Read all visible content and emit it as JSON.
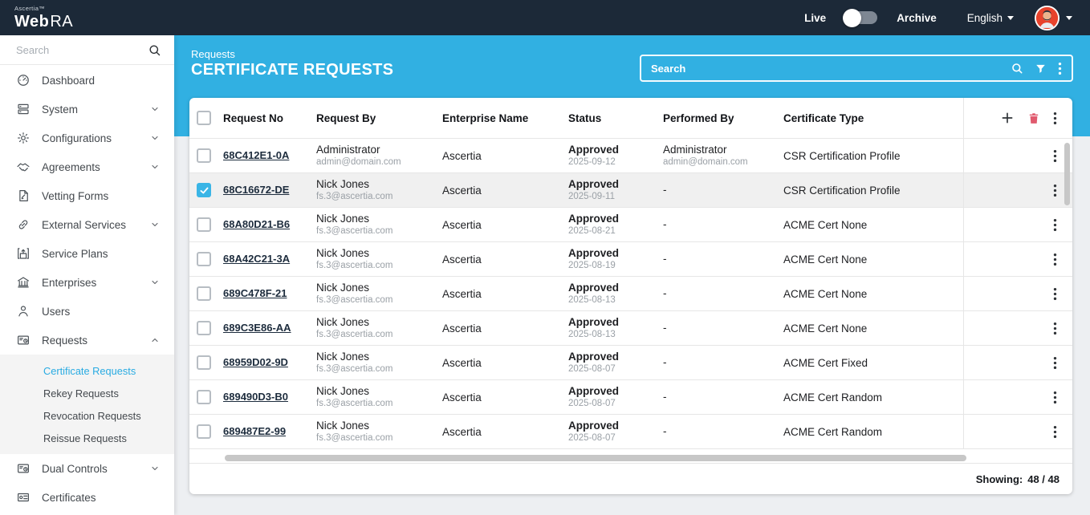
{
  "brand": {
    "company": "Ascertia",
    "trademark": "™",
    "product_primary": "Web",
    "product_secondary": "RA"
  },
  "topbar": {
    "live_label": "Live",
    "archive_label": "Archive",
    "language_label": "English"
  },
  "sidebar": {
    "search_placeholder": "Search",
    "items": [
      {
        "label": "Dashboard",
        "icon": "dashboard-icon"
      },
      {
        "label": "System",
        "icon": "system-icon",
        "chevron": "down"
      },
      {
        "label": "Configurations",
        "icon": "configurations-icon",
        "chevron": "down"
      },
      {
        "label": "Agreements",
        "icon": "agreements-icon",
        "chevron": "down"
      },
      {
        "label": "Vetting Forms",
        "icon": "vetting-forms-icon"
      },
      {
        "label": "External Services",
        "icon": "external-services-icon",
        "chevron": "down"
      },
      {
        "label": "Service Plans",
        "icon": "service-plans-icon"
      },
      {
        "label": "Enterprises",
        "icon": "enterprises-icon",
        "chevron": "down"
      },
      {
        "label": "Users",
        "icon": "users-icon"
      },
      {
        "label": "Requests",
        "icon": "requests-icon",
        "chevron": "up",
        "submenu": [
          {
            "label": "Certificate Requests",
            "active": true
          },
          {
            "label": "Rekey Requests",
            "active": false
          },
          {
            "label": "Revocation Requests",
            "active": false
          },
          {
            "label": "Reissue Requests",
            "active": false
          }
        ]
      },
      {
        "label": "Dual Controls",
        "icon": "dual-controls-icon",
        "chevron": "down"
      },
      {
        "label": "Certificates",
        "icon": "certificates-icon"
      },
      {
        "label": "",
        "icon": "card-icon"
      }
    ]
  },
  "page_header": {
    "breadcrumb": "Requests",
    "title": "CERTIFICATE REQUESTS",
    "search_placeholder": "Search"
  },
  "table": {
    "columns": [
      "Request No",
      "Request By",
      "Enterprise Name",
      "Status",
      "Performed By",
      "Certificate Type"
    ],
    "rows": [
      {
        "request_no": "68C412E1-0A",
        "request_by": {
          "name": "Administrator",
          "email": "admin@domain.com"
        },
        "enterprise": "Ascertia",
        "status": "Approved",
        "status_date": "2025-09-12",
        "performed_by": {
          "name": "Administrator",
          "email": "admin@domain.com"
        },
        "certificate_type": "CSR Certification Profile",
        "checked": false
      },
      {
        "request_no": "68C16672-DE",
        "request_by": {
          "name": "Nick Jones",
          "email": "fs.3@ascertia.com"
        },
        "enterprise": "Ascertia",
        "status": "Approved",
        "status_date": "2025-09-11",
        "performed_by": {
          "name": "-",
          "email": ""
        },
        "certificate_type": "CSR Certification Profile",
        "checked": true
      },
      {
        "request_no": "68A80D21-B6",
        "request_by": {
          "name": "Nick Jones",
          "email": "fs.3@ascertia.com"
        },
        "enterprise": "Ascertia",
        "status": "Approved",
        "status_date": "2025-08-21",
        "performed_by": {
          "name": "-",
          "email": ""
        },
        "certificate_type": "ACME Cert None",
        "checked": false
      },
      {
        "request_no": "68A42C21-3A",
        "request_by": {
          "name": "Nick Jones",
          "email": "fs.3@ascertia.com"
        },
        "enterprise": "Ascertia",
        "status": "Approved",
        "status_date": "2025-08-19",
        "performed_by": {
          "name": "-",
          "email": ""
        },
        "certificate_type": "ACME Cert None",
        "checked": false
      },
      {
        "request_no": "689C478F-21",
        "request_by": {
          "name": "Nick Jones",
          "email": "fs.3@ascertia.com"
        },
        "enterprise": "Ascertia",
        "status": "Approved",
        "status_date": "2025-08-13",
        "performed_by": {
          "name": "-",
          "email": ""
        },
        "certificate_type": "ACME Cert None",
        "checked": false
      },
      {
        "request_no": "689C3E86-AA",
        "request_by": {
          "name": "Nick Jones",
          "email": "fs.3@ascertia.com"
        },
        "enterprise": "Ascertia",
        "status": "Approved",
        "status_date": "2025-08-13",
        "performed_by": {
          "name": "-",
          "email": ""
        },
        "certificate_type": "ACME Cert None",
        "checked": false
      },
      {
        "request_no": "68959D02-9D",
        "request_by": {
          "name": "Nick Jones",
          "email": "fs.3@ascertia.com"
        },
        "enterprise": "Ascertia",
        "status": "Approved",
        "status_date": "2025-08-07",
        "performed_by": {
          "name": "-",
          "email": ""
        },
        "certificate_type": "ACME Cert Fixed",
        "checked": false
      },
      {
        "request_no": "689490D3-B0",
        "request_by": {
          "name": "Nick Jones",
          "email": "fs.3@ascertia.com"
        },
        "enterprise": "Ascertia",
        "status": "Approved",
        "status_date": "2025-08-07",
        "performed_by": {
          "name": "-",
          "email": ""
        },
        "certificate_type": "ACME Cert Random",
        "checked": false
      },
      {
        "request_no": "689487E2-99",
        "request_by": {
          "name": "Nick Jones",
          "email": "fs.3@ascertia.com"
        },
        "enterprise": "Ascertia",
        "status": "Approved",
        "status_date": "2025-08-07",
        "performed_by": {
          "name": "-",
          "email": ""
        },
        "certificate_type": "ACME Cert Random",
        "checked": false
      }
    ],
    "footer": {
      "showing_label": "Showing:",
      "showing_value": "48 / 48"
    }
  },
  "colors": {
    "accent": "#29abe2",
    "navbar": "#1c2938",
    "band": "#31b0e2",
    "danger": "#e05a6e",
    "selected_row": "#f0f0f0"
  }
}
